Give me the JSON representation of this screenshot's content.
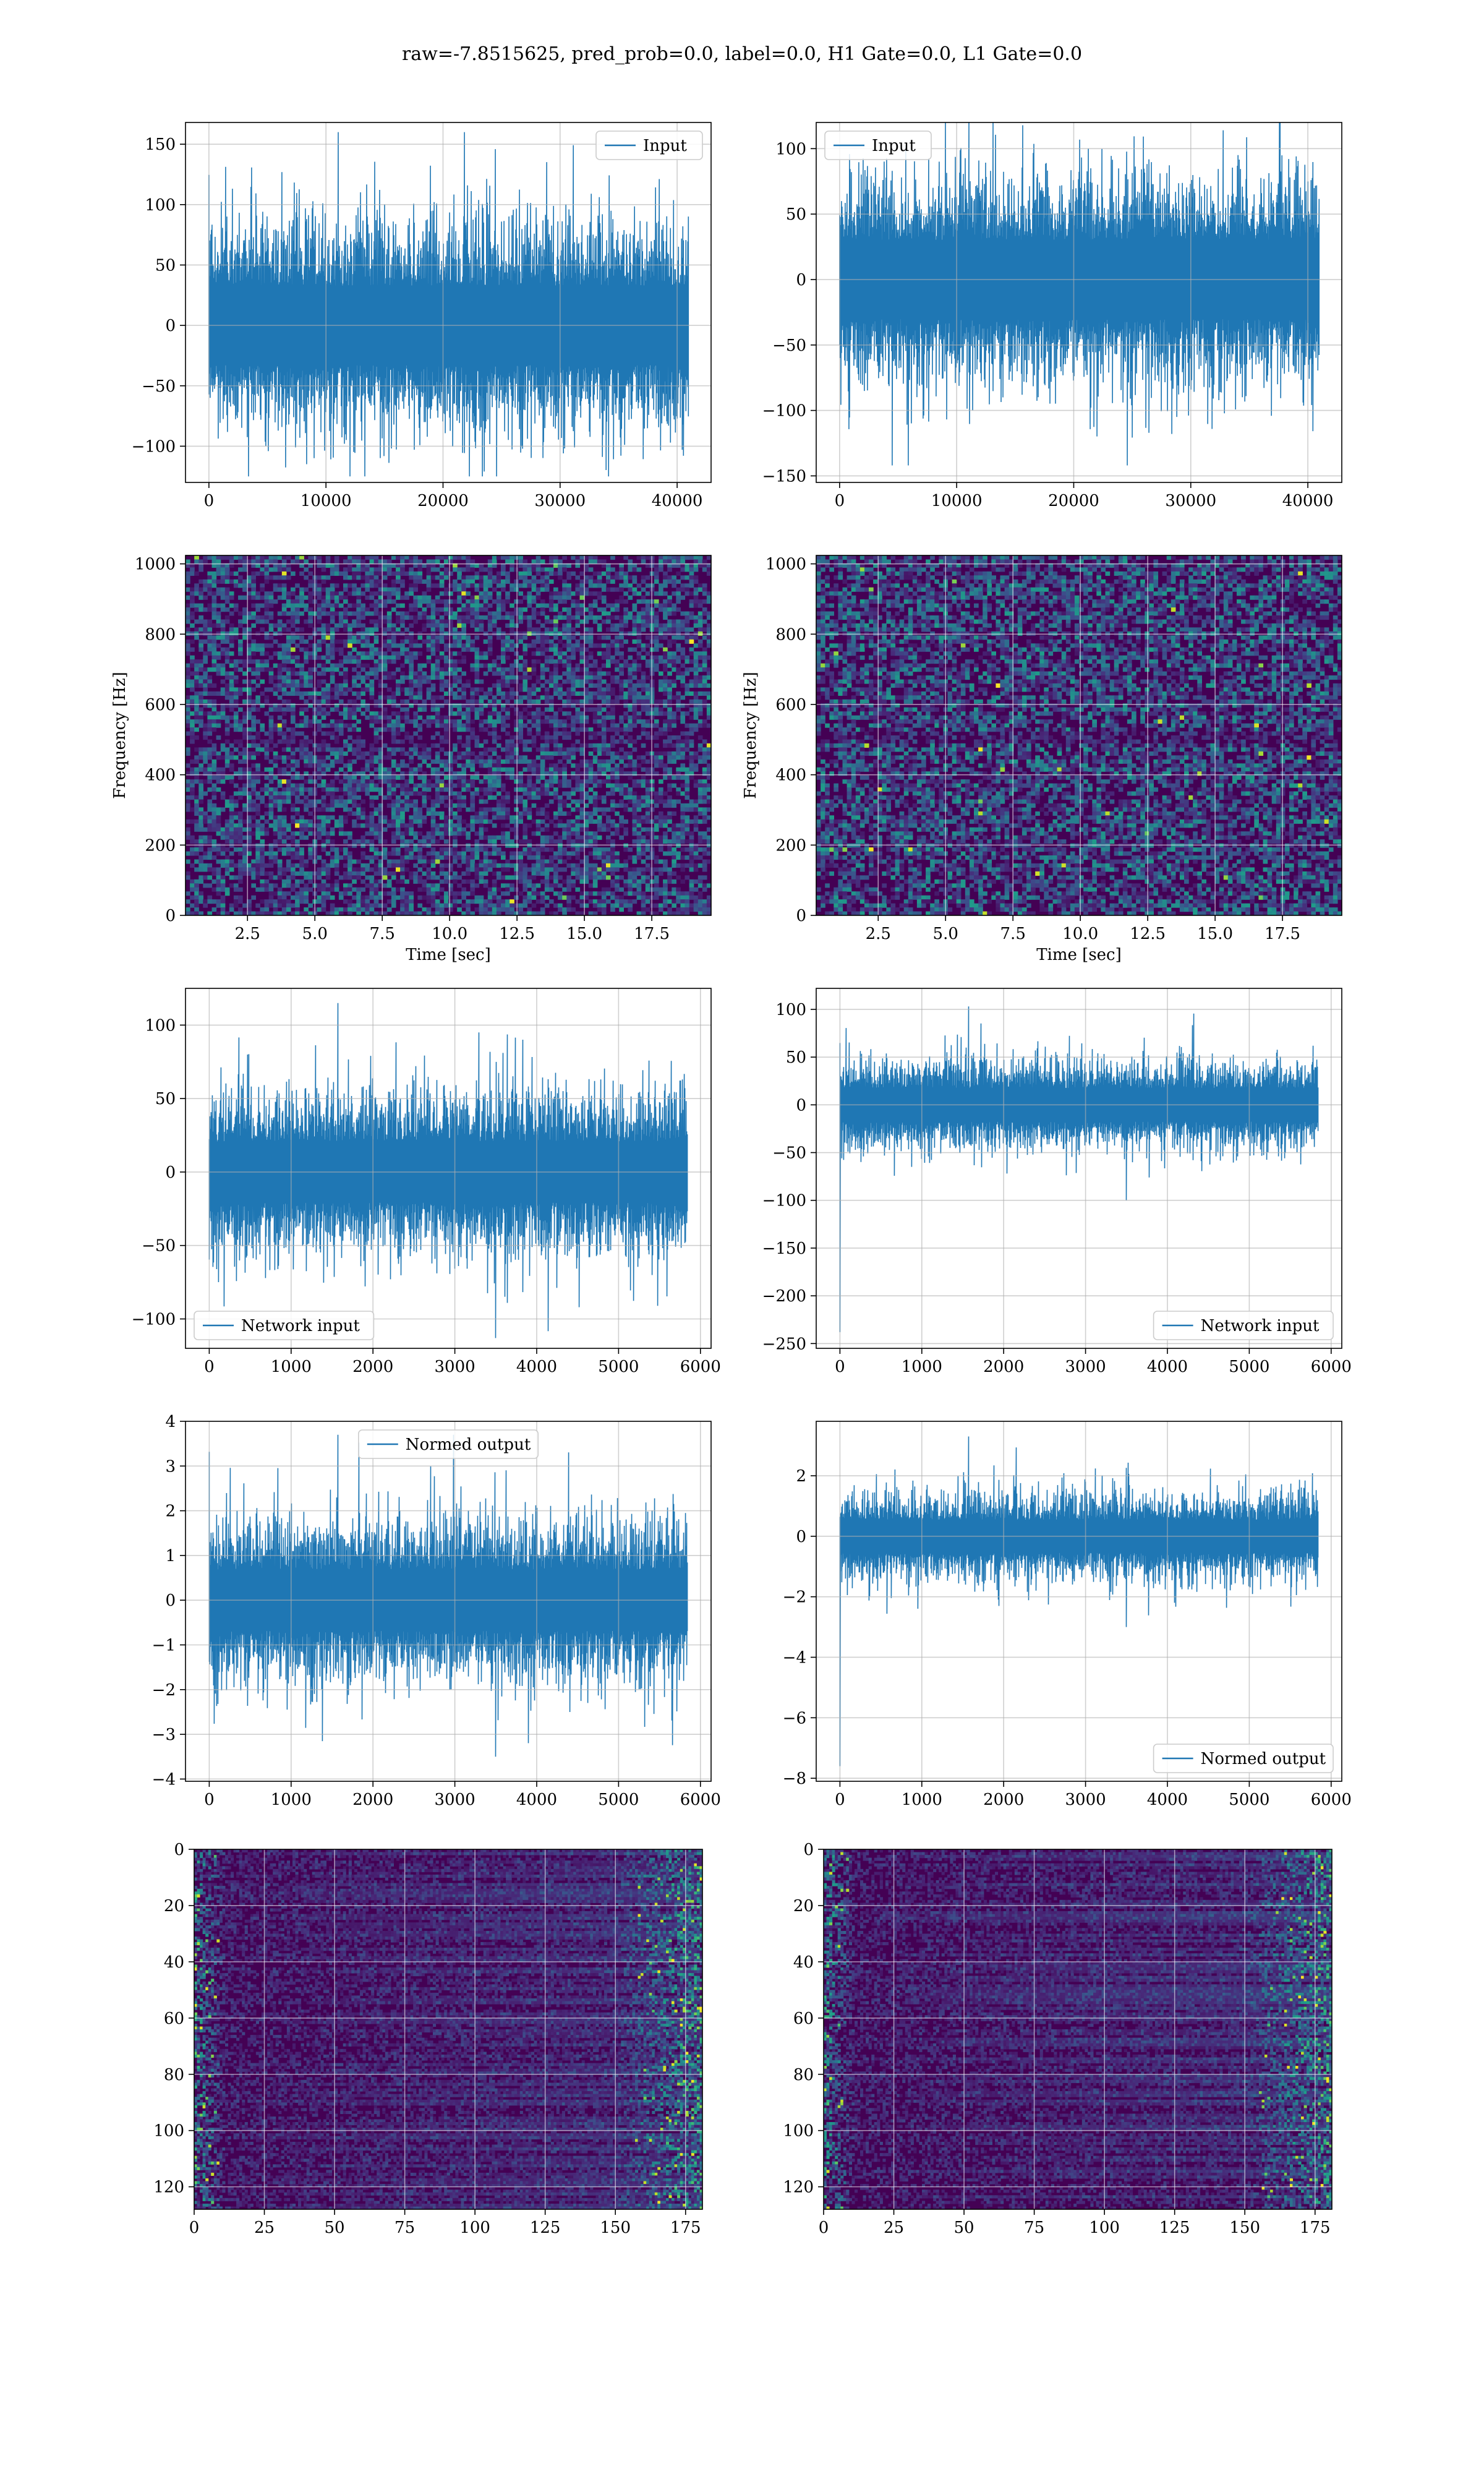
{
  "suptitle": "raw=-7.8515625, pred_prob=0.0, label=0.0, H1 Gate=0.0, L1 Gate=0.0",
  "colors": {
    "line": "#1f77b4",
    "viridis_low": "#440154",
    "viridis_high": "#fde725",
    "grid": "#b0b0b0"
  },
  "chart_data": [
    {
      "id": "input-h1",
      "type": "line",
      "series": [
        {
          "name": "Input"
        }
      ],
      "xlim": [
        -2000,
        42900
      ],
      "ylim": [
        -130,
        168
      ],
      "xticks": [
        0,
        10000,
        20000,
        30000,
        40000
      ],
      "yticks": [
        -100,
        -50,
        0,
        50,
        100,
        150
      ],
      "legend": "upper right",
      "grid": true,
      "signal": {
        "n": 40960,
        "x_end": 40960,
        "band": 60,
        "peak_max": 160,
        "peak_min": -125
      }
    },
    {
      "id": "input-l1",
      "type": "line",
      "series": [
        {
          "name": "Input"
        }
      ],
      "xlim": [
        -2000,
        42900
      ],
      "ylim": [
        -155,
        120
      ],
      "xticks": [
        0,
        10000,
        20000,
        30000,
        40000
      ],
      "yticks": [
        -150,
        -100,
        -50,
        0,
        50,
        100
      ],
      "legend": "upper left",
      "grid": true,
      "signal": {
        "n": 40960,
        "x_end": 40960,
        "band": 55,
        "peak_max": 120,
        "peak_min": -142
      }
    },
    {
      "id": "spectrogram-h1",
      "type": "heatmap",
      "xlim": [
        0.2,
        19.7
      ],
      "ylim": [
        0,
        1024
      ],
      "xticks": [
        2.5,
        5.0,
        7.5,
        10.0,
        12.5,
        15.0,
        17.5
      ],
      "yticks": [
        0,
        200,
        400,
        600,
        800,
        1000
      ],
      "xlabel": "Time [sec]",
      "ylabel": "Frequency [Hz]",
      "grid": true,
      "colormap": "viridis"
    },
    {
      "id": "spectrogram-l1",
      "type": "heatmap",
      "xlim": [
        0.2,
        19.7
      ],
      "ylim": [
        0,
        1024
      ],
      "xticks": [
        2.5,
        5.0,
        7.5,
        10.0,
        12.5,
        15.0,
        17.5
      ],
      "yticks": [
        0,
        200,
        400,
        600,
        800,
        1000
      ],
      "xlabel": "Time [sec]",
      "ylabel": "Frequency [Hz]",
      "grid": true,
      "colormap": "viridis"
    },
    {
      "id": "network-input-h1",
      "type": "line",
      "series": [
        {
          "name": "Network input"
        }
      ],
      "xlim": [
        -290,
        6130
      ],
      "ylim": [
        -120,
        125
      ],
      "xticks": [
        0,
        1000,
        2000,
        3000,
        4000,
        5000,
        6000
      ],
      "yticks": [
        -100,
        -50,
        0,
        50,
        100
      ],
      "legend": "lower left",
      "grid": true,
      "signal": {
        "n": 5840,
        "x_end": 5840,
        "band": 38,
        "peak_max": 115,
        "peak_min": -113
      }
    },
    {
      "id": "network-input-l1",
      "type": "line",
      "series": [
        {
          "name": "Network input"
        }
      ],
      "xlim": [
        -290,
        6130
      ],
      "ylim": [
        -255,
        122
      ],
      "xticks": [
        0,
        1000,
        2000,
        3000,
        4000,
        5000,
        6000
      ],
      "yticks": [
        -250,
        -200,
        -150,
        -100,
        -50,
        0,
        50,
        100
      ],
      "legend": "lower right",
      "grid": true,
      "signal": {
        "n": 5840,
        "x_end": 5840,
        "band": 32,
        "peak_max": 103,
        "peak_min": -100,
        "spike": {
          "x": 2,
          "y": -238
        }
      }
    },
    {
      "id": "normed-output-h1",
      "type": "line",
      "series": [
        {
          "name": "Normed output"
        }
      ],
      "xlim": [
        -290,
        6130
      ],
      "ylim": [
        -4.05,
        4.0
      ],
      "xticks": [
        0,
        1000,
        2000,
        3000,
        4000,
        5000,
        6000
      ],
      "yticks": [
        -4,
        -3,
        -2,
        -1,
        0,
        1,
        2,
        3,
        4
      ],
      "legend": "upper center",
      "grid": true,
      "signal": {
        "n": 5840,
        "x_end": 5840,
        "band": 1.25,
        "peak_max": 3.7,
        "peak_min": -3.5
      }
    },
    {
      "id": "normed-output-l1",
      "type": "line",
      "series": [
        {
          "name": "Normed output"
        }
      ],
      "xlim": [
        -290,
        6130
      ],
      "ylim": [
        -8.1,
        3.8
      ],
      "xticks": [
        0,
        1000,
        2000,
        3000,
        4000,
        5000,
        6000
      ],
      "yticks": [
        -8,
        -6,
        -4,
        -2,
        0,
        2
      ],
      "legend": "lower right",
      "grid": true,
      "signal": {
        "n": 5840,
        "x_end": 5840,
        "band": 1.0,
        "peak_max": 3.3,
        "peak_min": -3.0,
        "spike": {
          "x": 2,
          "y": -7.6
        }
      }
    },
    {
      "id": "feature-map-h1",
      "type": "heatmap",
      "xlim": [
        0,
        181
      ],
      "ylim": [
        128,
        0
      ],
      "xticks": [
        0,
        25,
        50,
        75,
        100,
        125,
        150,
        175
      ],
      "yticks": [
        0,
        20,
        40,
        60,
        80,
        100,
        120
      ],
      "grid": true,
      "colormap": "viridis"
    },
    {
      "id": "feature-map-l1",
      "type": "heatmap",
      "xlim": [
        0,
        181
      ],
      "ylim": [
        128,
        0
      ],
      "xticks": [
        0,
        25,
        50,
        75,
        100,
        125,
        150,
        175
      ],
      "yticks": [
        0,
        20,
        40,
        60,
        80,
        100,
        120
      ],
      "grid": true,
      "colormap": "viridis"
    }
  ]
}
